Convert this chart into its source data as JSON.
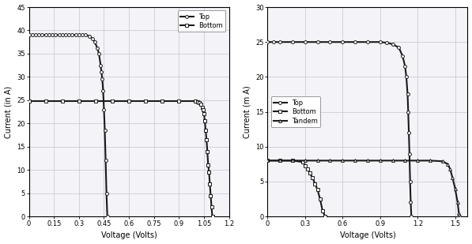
{
  "left": {
    "top_x": [
      0,
      0.02,
      0.04,
      0.06,
      0.08,
      0.1,
      0.12,
      0.14,
      0.16,
      0.18,
      0.2,
      0.22,
      0.24,
      0.26,
      0.28,
      0.3,
      0.32,
      0.34,
      0.36,
      0.38,
      0.395,
      0.41,
      0.42,
      0.43,
      0.435,
      0.44,
      0.445,
      0.45,
      0.455,
      0.46,
      0.465,
      0.47
    ],
    "top_y": [
      39.0,
      39.0,
      39.0,
      39.0,
      39.0,
      39.0,
      39.0,
      39.0,
      39.0,
      39.0,
      39.0,
      39.0,
      39.0,
      39.0,
      39.0,
      39.0,
      39.0,
      39.0,
      38.8,
      38.3,
      37.5,
      36.2,
      35.0,
      32.5,
      31.0,
      29.5,
      27.0,
      23.0,
      18.5,
      12.0,
      5.0,
      0.0
    ],
    "bottom_x": [
      0,
      0.1,
      0.2,
      0.3,
      0.4,
      0.5,
      0.6,
      0.7,
      0.8,
      0.9,
      1.0,
      1.01,
      1.02,
      1.03,
      1.04,
      1.045,
      1.05,
      1.055,
      1.06,
      1.065,
      1.07,
      1.075,
      1.08,
      1.085,
      1.09,
      1.095,
      1.1
    ],
    "bottom_y": [
      24.8,
      24.8,
      24.8,
      24.8,
      24.8,
      24.8,
      24.8,
      24.8,
      24.8,
      24.8,
      24.8,
      24.7,
      24.5,
      24.2,
      23.5,
      23.0,
      22.0,
      20.5,
      18.5,
      16.5,
      14.0,
      11.0,
      9.5,
      7.0,
      4.5,
      2.0,
      0.0
    ],
    "xlim": [
      0,
      1.2
    ],
    "ylim": [
      0,
      45
    ],
    "xticks": [
      0,
      0.15,
      0.3,
      0.45,
      0.6,
      0.75,
      0.9,
      1.05,
      1.2
    ],
    "yticks": [
      0,
      5,
      10,
      15,
      20,
      25,
      30,
      35,
      40,
      45
    ],
    "xlabel": "Voltage (Volts)",
    "ylabel": "Current (in A)",
    "legend_labels": [
      "Top",
      "Bottom"
    ],
    "legend_loc": "upper right"
  },
  "right": {
    "top_x": [
      0,
      0.05,
      0.1,
      0.2,
      0.3,
      0.4,
      0.5,
      0.6,
      0.7,
      0.8,
      0.9,
      0.95,
      1.0,
      1.05,
      1.08,
      1.1,
      1.11,
      1.12,
      1.125,
      1.13,
      1.135,
      1.14,
      1.145,
      1.15
    ],
    "top_y": [
      25.0,
      25.0,
      25.0,
      25.0,
      25.0,
      25.0,
      25.0,
      25.0,
      25.0,
      25.0,
      25.0,
      24.9,
      24.7,
      24.2,
      23.0,
      21.5,
      20.0,
      17.5,
      15.0,
      12.0,
      9.0,
      5.0,
      2.0,
      0.0
    ],
    "bottom_x": [
      0,
      0.1,
      0.2,
      0.28,
      0.3,
      0.32,
      0.34,
      0.36,
      0.38,
      0.4,
      0.42,
      0.44,
      0.46
    ],
    "bottom_y": [
      8.0,
      8.0,
      8.0,
      7.8,
      7.3,
      6.8,
      6.2,
      5.5,
      4.7,
      3.8,
      2.5,
      0.8,
      0.0
    ],
    "tandem_x": [
      0,
      0.1,
      0.2,
      0.3,
      0.4,
      0.5,
      0.6,
      0.7,
      0.8,
      0.9,
      1.0,
      1.1,
      1.2,
      1.3,
      1.4,
      1.44,
      1.46,
      1.48,
      1.5,
      1.52,
      1.53,
      1.535,
      1.54
    ],
    "tandem_y": [
      8.0,
      8.0,
      8.0,
      8.0,
      8.0,
      8.0,
      8.0,
      8.0,
      8.0,
      8.0,
      8.0,
      8.0,
      8.0,
      8.0,
      7.9,
      7.5,
      6.8,
      5.5,
      4.0,
      2.0,
      0.5,
      0.2,
      0.0
    ],
    "xlim": [
      0,
      1.6
    ],
    "ylim": [
      0,
      30
    ],
    "xticks": [
      0,
      0.3,
      0.6,
      0.9,
      1.2,
      1.5
    ],
    "yticks": [
      0,
      5,
      10,
      15,
      20,
      25,
      30
    ],
    "xlabel": "Voltage (Volts)",
    "ylabel": "Current (m A)",
    "legend_labels": [
      "Top",
      "Bottom",
      "Tandem"
    ],
    "legend_loc": "center left"
  },
  "line_color": "#1a1a1a",
  "bg_color": "#f4f4f8",
  "grid_color": "#c8ccd8",
  "top_marker": "o",
  "bottom_marker": "s",
  "tandem_marker": "^",
  "marker_size": 2.8,
  "linewidth": 1.5
}
